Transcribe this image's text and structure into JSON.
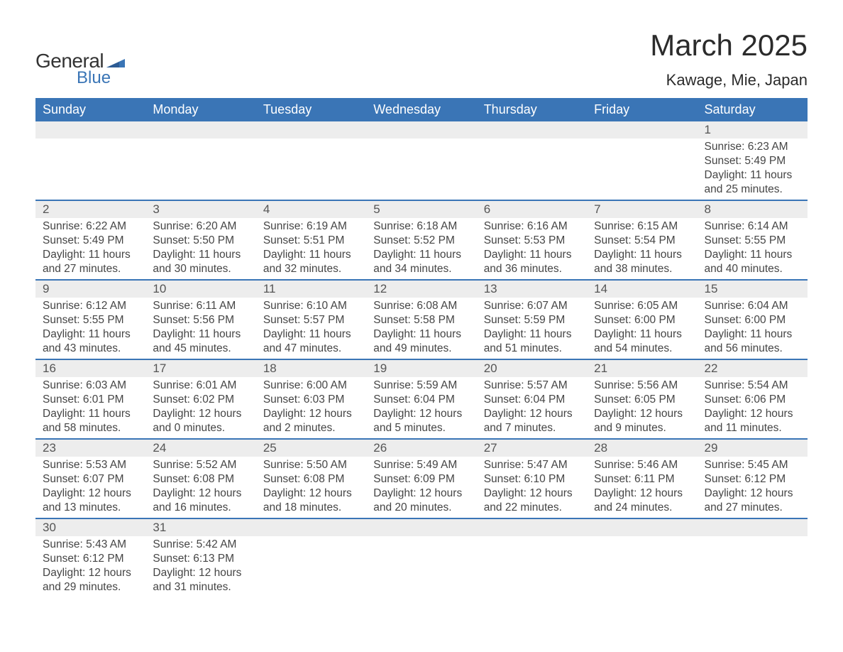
{
  "brand": {
    "word1": "General",
    "word2": "Blue",
    "text_color": "#333333",
    "accent_color": "#3a75b6"
  },
  "title": {
    "month_year": "March 2025",
    "location": "Kawage, Mie, Japan",
    "title_fontsize": 42,
    "location_fontsize": 22
  },
  "colors": {
    "header_bg": "#3a75b6",
    "header_text": "#ffffff",
    "daynum_bg": "#ededed",
    "row_border": "#3a75b6",
    "body_text": "#454545",
    "page_bg": "#ffffff"
  },
  "weekdays": [
    "Sunday",
    "Monday",
    "Tuesday",
    "Wednesday",
    "Thursday",
    "Friday",
    "Saturday"
  ],
  "labels": {
    "sunrise": "Sunrise",
    "sunset": "Sunset",
    "daylight": "Daylight"
  },
  "weeks": [
    [
      null,
      null,
      null,
      null,
      null,
      null,
      {
        "n": "1",
        "sr": "6:23 AM",
        "ss": "5:49 PM",
        "dl": "11 hours and 25 minutes."
      }
    ],
    [
      {
        "n": "2",
        "sr": "6:22 AM",
        "ss": "5:49 PM",
        "dl": "11 hours and 27 minutes."
      },
      {
        "n": "3",
        "sr": "6:20 AM",
        "ss": "5:50 PM",
        "dl": "11 hours and 30 minutes."
      },
      {
        "n": "4",
        "sr": "6:19 AM",
        "ss": "5:51 PM",
        "dl": "11 hours and 32 minutes."
      },
      {
        "n": "5",
        "sr": "6:18 AM",
        "ss": "5:52 PM",
        "dl": "11 hours and 34 minutes."
      },
      {
        "n": "6",
        "sr": "6:16 AM",
        "ss": "5:53 PM",
        "dl": "11 hours and 36 minutes."
      },
      {
        "n": "7",
        "sr": "6:15 AM",
        "ss": "5:54 PM",
        "dl": "11 hours and 38 minutes."
      },
      {
        "n": "8",
        "sr": "6:14 AM",
        "ss": "5:55 PM",
        "dl": "11 hours and 40 minutes."
      }
    ],
    [
      {
        "n": "9",
        "sr": "6:12 AM",
        "ss": "5:55 PM",
        "dl": "11 hours and 43 minutes."
      },
      {
        "n": "10",
        "sr": "6:11 AM",
        "ss": "5:56 PM",
        "dl": "11 hours and 45 minutes."
      },
      {
        "n": "11",
        "sr": "6:10 AM",
        "ss": "5:57 PM",
        "dl": "11 hours and 47 minutes."
      },
      {
        "n": "12",
        "sr": "6:08 AM",
        "ss": "5:58 PM",
        "dl": "11 hours and 49 minutes."
      },
      {
        "n": "13",
        "sr": "6:07 AM",
        "ss": "5:59 PM",
        "dl": "11 hours and 51 minutes."
      },
      {
        "n": "14",
        "sr": "6:05 AM",
        "ss": "6:00 PM",
        "dl": "11 hours and 54 minutes."
      },
      {
        "n": "15",
        "sr": "6:04 AM",
        "ss": "6:00 PM",
        "dl": "11 hours and 56 minutes."
      }
    ],
    [
      {
        "n": "16",
        "sr": "6:03 AM",
        "ss": "6:01 PM",
        "dl": "11 hours and 58 minutes."
      },
      {
        "n": "17",
        "sr": "6:01 AM",
        "ss": "6:02 PM",
        "dl": "12 hours and 0 minutes."
      },
      {
        "n": "18",
        "sr": "6:00 AM",
        "ss": "6:03 PM",
        "dl": "12 hours and 2 minutes."
      },
      {
        "n": "19",
        "sr": "5:59 AM",
        "ss": "6:04 PM",
        "dl": "12 hours and 5 minutes."
      },
      {
        "n": "20",
        "sr": "5:57 AM",
        "ss": "6:04 PM",
        "dl": "12 hours and 7 minutes."
      },
      {
        "n": "21",
        "sr": "5:56 AM",
        "ss": "6:05 PM",
        "dl": "12 hours and 9 minutes."
      },
      {
        "n": "22",
        "sr": "5:54 AM",
        "ss": "6:06 PM",
        "dl": "12 hours and 11 minutes."
      }
    ],
    [
      {
        "n": "23",
        "sr": "5:53 AM",
        "ss": "6:07 PM",
        "dl": "12 hours and 13 minutes."
      },
      {
        "n": "24",
        "sr": "5:52 AM",
        "ss": "6:08 PM",
        "dl": "12 hours and 16 minutes."
      },
      {
        "n": "25",
        "sr": "5:50 AM",
        "ss": "6:08 PM",
        "dl": "12 hours and 18 minutes."
      },
      {
        "n": "26",
        "sr": "5:49 AM",
        "ss": "6:09 PM",
        "dl": "12 hours and 20 minutes."
      },
      {
        "n": "27",
        "sr": "5:47 AM",
        "ss": "6:10 PM",
        "dl": "12 hours and 22 minutes."
      },
      {
        "n": "28",
        "sr": "5:46 AM",
        "ss": "6:11 PM",
        "dl": "12 hours and 24 minutes."
      },
      {
        "n": "29",
        "sr": "5:45 AM",
        "ss": "6:12 PM",
        "dl": "12 hours and 27 minutes."
      }
    ],
    [
      {
        "n": "30",
        "sr": "5:43 AM",
        "ss": "6:12 PM",
        "dl": "12 hours and 29 minutes."
      },
      {
        "n": "31",
        "sr": "5:42 AM",
        "ss": "6:13 PM",
        "dl": "12 hours and 31 minutes."
      },
      null,
      null,
      null,
      null,
      null
    ]
  ]
}
